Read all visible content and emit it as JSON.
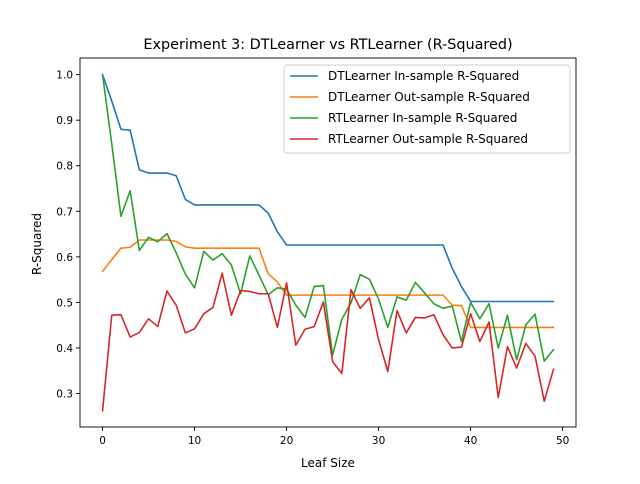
{
  "chart_data": {
    "type": "line",
    "title": "Experiment 3: DTLearner vs RTLearner (R-Squared)",
    "xlabel": "Leaf Size",
    "ylabel": "R-Squared",
    "xlim": [
      -2.45,
      51.45
    ],
    "ylim": [
      0.2265,
      1.0365
    ],
    "xticks": [
      0,
      10,
      20,
      30,
      40,
      50
    ],
    "yticks": [
      0.3,
      0.4,
      0.5,
      0.6,
      0.7,
      0.8,
      0.9,
      1.0
    ],
    "ytick_labels": [
      "0.3",
      "0.4",
      "0.5",
      "0.6",
      "0.7",
      "0.8",
      "0.9",
      "1.0"
    ],
    "legend_position": "top-right",
    "x": [
      0,
      1,
      2,
      3,
      4,
      5,
      6,
      7,
      8,
      9,
      10,
      11,
      12,
      13,
      14,
      15,
      16,
      17,
      18,
      19,
      20,
      21,
      22,
      23,
      24,
      25,
      26,
      27,
      28,
      29,
      30,
      31,
      32,
      33,
      34,
      35,
      36,
      37,
      38,
      39,
      40,
      41,
      42,
      43,
      44,
      45,
      46,
      47,
      48,
      49
    ],
    "series": [
      {
        "name": "DTLearner In-sample R-Squared",
        "color": "#1f77b4",
        "values": [
          1.0,
          0.942,
          0.88,
          0.878,
          0.791,
          0.784,
          0.784,
          0.784,
          0.778,
          0.726,
          0.714,
          0.714,
          0.714,
          0.714,
          0.714,
          0.714,
          0.714,
          0.714,
          0.696,
          0.655,
          0.626,
          0.626,
          0.626,
          0.626,
          0.626,
          0.626,
          0.626,
          0.626,
          0.626,
          0.626,
          0.626,
          0.626,
          0.626,
          0.626,
          0.626,
          0.626,
          0.626,
          0.626,
          0.575,
          0.535,
          0.502,
          0.502,
          0.502,
          0.502,
          0.502,
          0.502,
          0.502,
          0.502,
          0.502,
          0.502
        ]
      },
      {
        "name": "DTLearner Out-sample R-Squared",
        "color": "#ff7f0e",
        "values": [
          0.568,
          0.594,
          0.619,
          0.621,
          0.637,
          0.637,
          0.637,
          0.637,
          0.634,
          0.622,
          0.619,
          0.619,
          0.619,
          0.619,
          0.619,
          0.619,
          0.619,
          0.619,
          0.563,
          0.545,
          0.516,
          0.516,
          0.516,
          0.516,
          0.516,
          0.516,
          0.516,
          0.516,
          0.516,
          0.516,
          0.516,
          0.516,
          0.516,
          0.516,
          0.516,
          0.516,
          0.516,
          0.516,
          0.494,
          0.493,
          0.445,
          0.445,
          0.445,
          0.445,
          0.445,
          0.445,
          0.445,
          0.445,
          0.445,
          0.445
        ]
      },
      {
        "name": "RTLearner In-sample R-Squared",
        "color": "#2ca02c",
        "values": [
          1.0,
          0.848,
          0.689,
          0.745,
          0.614,
          0.643,
          0.633,
          0.651,
          0.609,
          0.562,
          0.532,
          0.612,
          0.593,
          0.607,
          0.582,
          0.519,
          0.602,
          0.56,
          0.517,
          0.532,
          0.529,
          0.494,
          0.467,
          0.535,
          0.537,
          0.384,
          0.463,
          0.499,
          0.561,
          0.551,
          0.507,
          0.445,
          0.512,
          0.505,
          0.544,
          0.521,
          0.497,
          0.487,
          0.492,
          0.414,
          0.5,
          0.464,
          0.497,
          0.4,
          0.472,
          0.374,
          0.451,
          0.474,
          0.371,
          0.396
        ]
      },
      {
        "name": "RTLearner Out-sample R-Squared",
        "color": "#d62728",
        "values": [
          0.262,
          0.472,
          0.473,
          0.424,
          0.434,
          0.464,
          0.447,
          0.525,
          0.494,
          0.433,
          0.442,
          0.475,
          0.489,
          0.564,
          0.472,
          0.526,
          0.524,
          0.519,
          0.519,
          0.445,
          0.543,
          0.406,
          0.441,
          0.447,
          0.501,
          0.37,
          0.344,
          0.528,
          0.487,
          0.51,
          0.418,
          0.348,
          0.482,
          0.433,
          0.467,
          0.466,
          0.473,
          0.429,
          0.4,
          0.402,
          0.475,
          0.414,
          0.457,
          0.291,
          0.403,
          0.356,
          0.41,
          0.382,
          0.283,
          0.353
        ]
      }
    ]
  }
}
